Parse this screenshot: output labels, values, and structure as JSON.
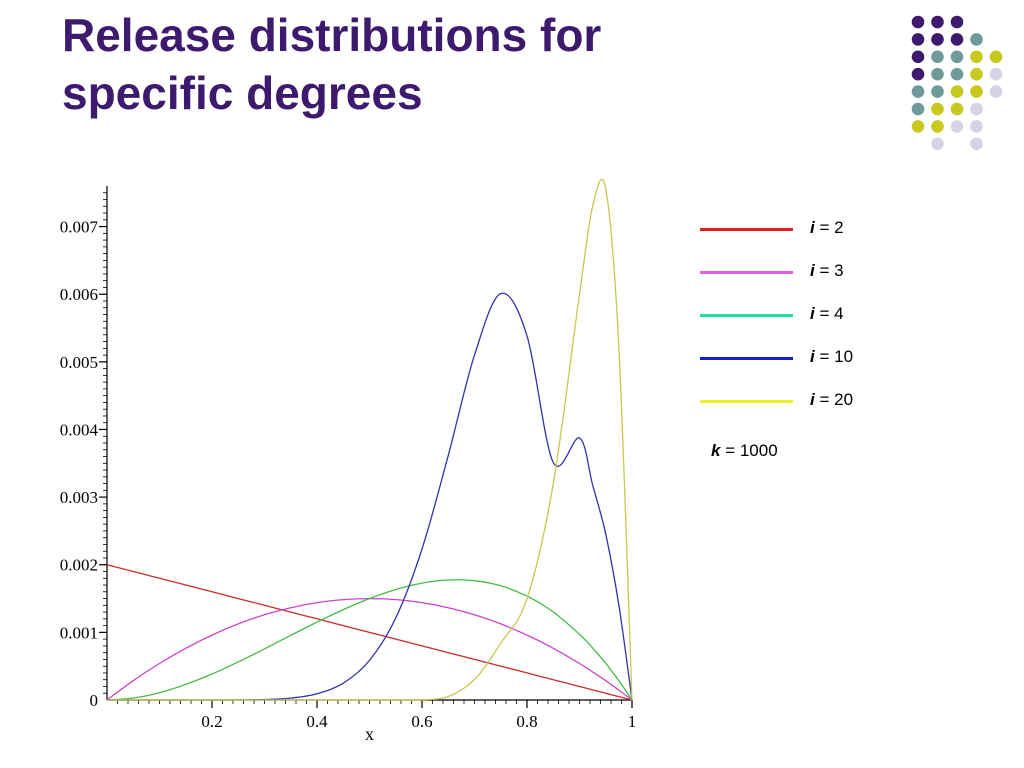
{
  "slide": {
    "title": "Release distributions for specific degrees"
  },
  "decoration": {
    "dot_grid": [
      [
        "#3d1a6e",
        "#3d1a6e",
        "#3d1a6e",
        "",
        ""
      ],
      [
        "#3d1a6e",
        "#3d1a6e",
        "#3d1a6e",
        "#6e9a9a",
        ""
      ],
      [
        "#3d1a6e",
        "#6e9a9a",
        "#6e9a9a",
        "#c8c81e",
        "#c8c81e"
      ],
      [
        "#3d1a6e",
        "#6e9a9a",
        "#6e9a9a",
        "#c8c81e",
        "#d4d4e6"
      ],
      [
        "#6e9a9a",
        "#6e9a9a",
        "#c8c81e",
        "#c8c81e",
        "#d4d4e6"
      ],
      [
        "#6e9a9a",
        "#c8c81e",
        "#c8c81e",
        "#d4d4e6",
        ""
      ],
      [
        "#c8c81e",
        "#c8c81e",
        "#d4d4e6",
        "#d4d4e6",
        ""
      ],
      [
        "",
        "#d4d4e6",
        "",
        "#d4d4e6",
        ""
      ]
    ]
  },
  "chart_data": {
    "type": "line",
    "title": "",
    "xlabel": "x",
    "ylabel": "",
    "xlim": [
      0,
      1
    ],
    "ylim": [
      0,
      0.0075
    ],
    "x_ticks": [
      "0.2",
      "0.4",
      "0.6",
      "0.8",
      "1"
    ],
    "x_tick_values": [
      0.2,
      0.4,
      0.6,
      0.8,
      1
    ],
    "y_ticks": [
      "0",
      "0.001",
      "0.002",
      "0.003",
      "0.004",
      "0.005",
      "0.006",
      "0.007"
    ],
    "y_tick_values": [
      0,
      0.001,
      0.002,
      0.003,
      0.004,
      0.005,
      0.006,
      0.007
    ],
    "x": [
      0,
      0.05,
      0.1,
      0.15,
      0.2,
      0.25,
      0.3,
      0.35,
      0.4,
      0.45,
      0.5,
      0.55,
      0.6,
      0.65,
      0.7,
      0.75,
      0.8,
      0.85,
      0.9,
      0.925,
      0.95,
      0.975,
      1
    ],
    "series": [
      {
        "name": "i = 2",
        "color": "#cc2a2a",
        "values": [
          0.002,
          0.0019,
          0.0018,
          0.0017,
          0.0016,
          0.0015,
          0.0014,
          0.0013,
          0.0012,
          0.0011,
          0.001,
          0.0009,
          0.0008,
          0.0007,
          0.0006,
          0.0005,
          0.0004,
          0.0003,
          0.0002,
          0.00015,
          0.0001,
          5e-05,
          0.0
        ]
      },
      {
        "name": "i = 3",
        "color": "#cc44cc",
        "values": [
          0.0,
          0.000285,
          0.00054,
          0.000765,
          0.00096,
          0.001125,
          0.00126,
          0.001365,
          0.00144,
          0.001485,
          0.0015,
          0.001485,
          0.00144,
          0.001365,
          0.00126,
          0.001125,
          0.00096,
          0.000765,
          0.00054,
          0.000416,
          0.000285,
          0.000146,
          0.0
        ]
      },
      {
        "name": "i = 4",
        "color": "#44bb44",
        "values": [
          0.0,
          2.9e-05,
          0.000108,
          0.00023,
          0.000384,
          0.000563,
          0.000756,
          0.000956,
          0.001152,
          0.001337,
          0.0015,
          0.001634,
          0.001728,
          0.001775,
          0.001764,
          0.001688,
          0.001536,
          0.001301,
          0.000972,
          0.00077,
          0.000542,
          0.000285,
          0.0
        ]
      },
      {
        "name": "i = 10",
        "color": "#3333aa",
        "values": [
          0.0,
          0.0,
          0.0,
          0.0,
          0.0,
          1e-06,
          7e-06,
          2.8e-05,
          9.1e-05,
          0.000249,
          0.000586,
          0.001214,
          0.002232,
          0.003618,
          0.0051,
          0.006009,
          0.005383,
          0.003512,
          0.003874,
          0.00318,
          0.00245,
          0.0014,
          0.0
        ]
      },
      {
        "name": "i = 20",
        "color": "#c8c850",
        "values": [
          0.0,
          0.0,
          0.0,
          0.0,
          0.0,
          0.0,
          0.0,
          0.0,
          0.0,
          0.0,
          0.0,
          0.0,
          3e-06,
          5.2e-05,
          0.000304,
          0.00084,
          0.0015,
          0.0032,
          0.006,
          0.0073,
          0.00755,
          0.0052,
          0.0
        ]
      }
    ],
    "legend": {
      "placement": "right",
      "items": [
        {
          "var": "i",
          "text": " = 2",
          "color": "#e02020"
        },
        {
          "var": "i",
          "text": " = 3",
          "color": "#e060e0"
        },
        {
          "var": "i",
          "text": " = 4",
          "color": "#20e0a0"
        },
        {
          "var": "i",
          "text": " = 10",
          "color": "#1020d0"
        },
        {
          "var": "i",
          "text": " = 20",
          "color": "#f0f020"
        }
      ],
      "note_var": "k",
      "note_text": " = 1000"
    },
    "grid": false
  }
}
